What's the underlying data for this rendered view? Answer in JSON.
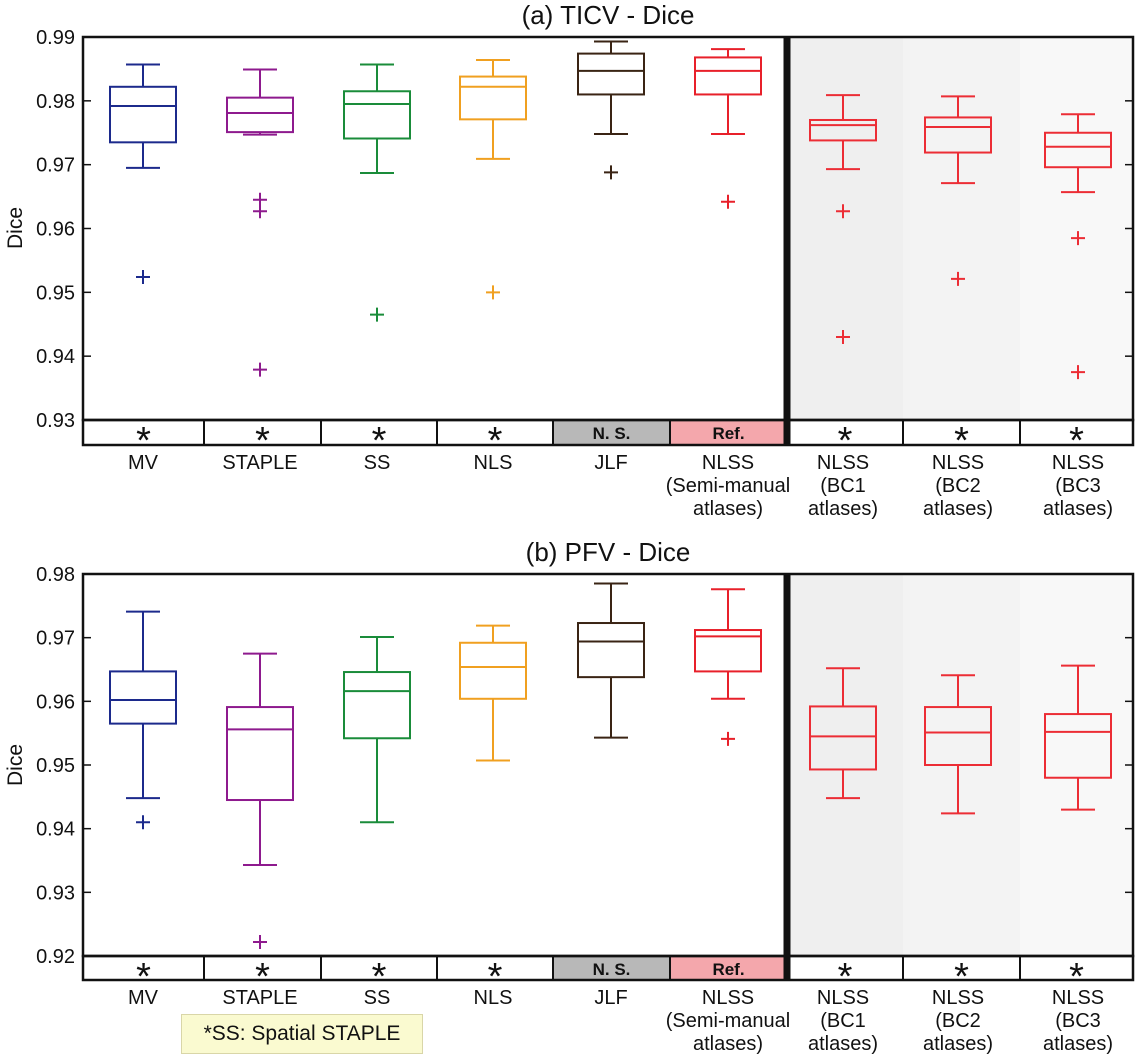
{
  "colors": {
    "MV": "#1c2a8c",
    "STAPLE": "#8e1a8e",
    "SS": "#1a8c3a",
    "NLS": "#f0a020",
    "JLF": "#3a2414",
    "NLSS": "#e8202a",
    "NLSS_BC": "#ec2d35",
    "ns_box": "#b8b8b8",
    "ref_box": "#f4a7ac",
    "shade": [
      "#efefef",
      "#f3f3f3",
      "#f8f8f8"
    ]
  },
  "note": "*SS: Spatial STAPLE",
  "chart_data": [
    {
      "type": "box",
      "title": "(a) TICV - Dice",
      "ylabel": "Dice",
      "ylim": [
        0.93,
        0.99
      ],
      "yticks": [
        "0.93",
        "0.94",
        "0.95",
        "0.96",
        "0.97",
        "0.98",
        "0.99"
      ],
      "categories": [
        [
          "MV"
        ],
        [
          "STAPLE"
        ],
        [
          "SS"
        ],
        [
          "NLS"
        ],
        [
          "JLF"
        ],
        [
          "NLSS",
          "(Semi-manual",
          "atlases)"
        ],
        [
          "NLSS",
          "(BC1",
          "atlases)"
        ],
        [
          "NLSS",
          "(BC2",
          "atlases)"
        ],
        [
          "NLSS",
          "(BC3",
          "atlases)"
        ]
      ],
      "significance": [
        "*",
        "*",
        "*",
        "*",
        "N. S.",
        "Ref.",
        "*",
        "*",
        "*"
      ],
      "boxes": [
        {
          "name": "MV",
          "whisker_low": 0.9695,
          "q1": 0.9735,
          "median": 0.9792,
          "q3": 0.9822,
          "whisker_high": 0.9857,
          "outliers": [
            0.9524
          ]
        },
        {
          "name": "STAPLE",
          "whisker_low": 0.9747,
          "q1": 0.9751,
          "median": 0.9781,
          "q3": 0.9805,
          "whisker_high": 0.9849,
          "outliers": [
            0.9645,
            0.9627,
            0.9379
          ]
        },
        {
          "name": "SS",
          "whisker_low": 0.9687,
          "q1": 0.9741,
          "median": 0.9795,
          "q3": 0.9815,
          "whisker_high": 0.9857,
          "outliers": [
            0.9465
          ]
        },
        {
          "name": "NLS",
          "whisker_low": 0.9709,
          "q1": 0.9771,
          "median": 0.9822,
          "q3": 0.9838,
          "whisker_high": 0.9864,
          "outliers": [
            0.95
          ]
        },
        {
          "name": "JLF",
          "whisker_low": 0.9748,
          "q1": 0.981,
          "median": 0.9847,
          "q3": 0.9874,
          "whisker_high": 0.9893,
          "outliers": [
            0.9688
          ]
        },
        {
          "name": "NLSS (Semi-manual atlases)",
          "whisker_low": 0.9748,
          "q1": 0.981,
          "median": 0.9847,
          "q3": 0.9868,
          "whisker_high": 0.9881,
          "outliers": [
            0.9642
          ]
        },
        {
          "name": "NLSS (BC1 atlases)",
          "whisker_low": 0.9693,
          "q1": 0.9738,
          "median": 0.9762,
          "q3": 0.977,
          "whisker_high": 0.9809,
          "outliers": [
            0.9627,
            0.943
          ]
        },
        {
          "name": "NLSS (BC2 atlases)",
          "whisker_low": 0.9671,
          "q1": 0.9719,
          "median": 0.9759,
          "q3": 0.9774,
          "whisker_high": 0.9807,
          "outliers": [
            0.9521
          ]
        },
        {
          "name": "NLSS (BC3 atlases)",
          "whisker_low": 0.9657,
          "q1": 0.9696,
          "median": 0.9728,
          "q3": 0.975,
          "whisker_high": 0.9779,
          "outliers": [
            0.9585,
            0.9375
          ]
        }
      ]
    },
    {
      "type": "box",
      "title": "(b) PFV - Dice",
      "ylabel": "Dice",
      "ylim": [
        0.92,
        0.98
      ],
      "yticks": [
        "0.92",
        "0.93",
        "0.94",
        "0.95",
        "0.96",
        "0.97",
        "0.98"
      ],
      "categories": [
        [
          "MV"
        ],
        [
          "STAPLE"
        ],
        [
          "SS"
        ],
        [
          "NLS"
        ],
        [
          "JLF"
        ],
        [
          "NLSS",
          "(Semi-manual",
          "atlases)"
        ],
        [
          "NLSS",
          "(BC1",
          "atlases)"
        ],
        [
          "NLSS",
          "(BC2",
          "atlases)"
        ],
        [
          "NLSS",
          "(BC3",
          "atlases)"
        ]
      ],
      "significance": [
        "*",
        "*",
        "*",
        "*",
        "N. S.",
        "Ref.",
        "*",
        "*",
        "*"
      ],
      "boxes": [
        {
          "name": "MV",
          "whisker_low": 0.9448,
          "q1": 0.9565,
          "median": 0.9602,
          "q3": 0.9647,
          "whisker_high": 0.9741,
          "outliers": [
            0.941
          ]
        },
        {
          "name": "STAPLE",
          "whisker_low": 0.9343,
          "q1": 0.9445,
          "median": 0.9556,
          "q3": 0.9591,
          "whisker_high": 0.9675,
          "outliers": [
            0.9222
          ]
        },
        {
          "name": "SS",
          "whisker_low": 0.941,
          "q1": 0.9542,
          "median": 0.9616,
          "q3": 0.9646,
          "whisker_high": 0.9701,
          "outliers": []
        },
        {
          "name": "NLS",
          "whisker_low": 0.9507,
          "q1": 0.9604,
          "median": 0.9654,
          "q3": 0.9692,
          "whisker_high": 0.9719,
          "outliers": []
        },
        {
          "name": "JLF",
          "whisker_low": 0.9543,
          "q1": 0.9638,
          "median": 0.9694,
          "q3": 0.9723,
          "whisker_high": 0.9785,
          "outliers": []
        },
        {
          "name": "NLSS (Semi-manual atlases)",
          "whisker_low": 0.9604,
          "q1": 0.9647,
          "median": 0.9702,
          "q3": 0.9712,
          "whisker_high": 0.9776,
          "outliers": [
            0.9541
          ]
        },
        {
          "name": "NLSS (BC1 atlases)",
          "whisker_low": 0.9448,
          "q1": 0.9493,
          "median": 0.9545,
          "q3": 0.9592,
          "whisker_high": 0.9652,
          "outliers": []
        },
        {
          "name": "NLSS (BC2 atlases)",
          "whisker_low": 0.9424,
          "q1": 0.95,
          "median": 0.9551,
          "q3": 0.9591,
          "whisker_high": 0.9641,
          "outliers": []
        },
        {
          "name": "NLSS (BC3 atlases)",
          "whisker_low": 0.943,
          "q1": 0.948,
          "median": 0.9552,
          "q3": 0.958,
          "whisker_high": 0.9656,
          "outliers": []
        }
      ]
    }
  ]
}
